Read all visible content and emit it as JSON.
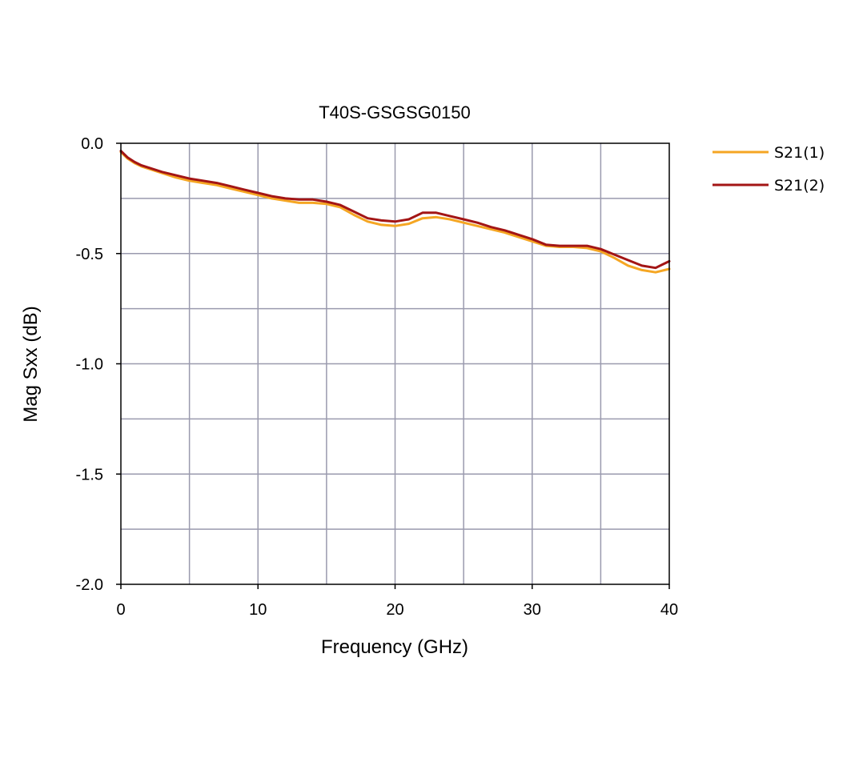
{
  "chart_data": {
    "type": "line",
    "title": "T40S-GSGSG0150",
    "xlabel": "Frequency (GHz)",
    "ylabel": "Mag Sxx (dB)",
    "xlim": [
      0,
      40
    ],
    "ylim": [
      -2.0,
      0.0
    ],
    "xticks": [
      0,
      10,
      20,
      30,
      40
    ],
    "xtick_labels": [
      "0",
      "10",
      "20",
      "30",
      "40"
    ],
    "yticks": [
      0.0,
      -0.5,
      -1.0,
      -1.5,
      -2.0
    ],
    "ytick_labels": [
      "0.0",
      "-0.5",
      "-1.0",
      "-1.5",
      "-2.0"
    ],
    "grid": true,
    "legend_position": "top-right outside",
    "series": [
      {
        "name": "S21(1)",
        "color": "#F5A623",
        "x": [
          0,
          0.5,
          1,
          1.5,
          2,
          3,
          4,
          5,
          6,
          7,
          8,
          9,
          10,
          11,
          12,
          13,
          14,
          15,
          16,
          17,
          18,
          19,
          20,
          21,
          22,
          23,
          24,
          25,
          26,
          27,
          28,
          29,
          30,
          31,
          32,
          33,
          34,
          35,
          36,
          37,
          38,
          39,
          40
        ],
        "y": [
          -0.04,
          -0.07,
          -0.09,
          -0.105,
          -0.115,
          -0.135,
          -0.155,
          -0.17,
          -0.18,
          -0.19,
          -0.205,
          -0.22,
          -0.235,
          -0.25,
          -0.26,
          -0.27,
          -0.27,
          -0.275,
          -0.29,
          -0.325,
          -0.355,
          -0.37,
          -0.375,
          -0.365,
          -0.34,
          -0.335,
          -0.345,
          -0.36,
          -0.375,
          -0.39,
          -0.405,
          -0.425,
          -0.445,
          -0.465,
          -0.47,
          -0.47,
          -0.475,
          -0.49,
          -0.52,
          -0.555,
          -0.575,
          -0.585,
          -0.57
        ]
      },
      {
        "name": "S21(2)",
        "color": "#A31515",
        "x": [
          0,
          0.5,
          1,
          1.5,
          2,
          3,
          4,
          5,
          6,
          7,
          8,
          9,
          10,
          11,
          12,
          13,
          14,
          15,
          16,
          17,
          18,
          19,
          20,
          21,
          22,
          23,
          24,
          25,
          26,
          27,
          28,
          29,
          30,
          31,
          32,
          33,
          34,
          35,
          36,
          37,
          38,
          39,
          39.5,
          40
        ],
        "y": [
          -0.035,
          -0.065,
          -0.085,
          -0.1,
          -0.11,
          -0.13,
          -0.145,
          -0.16,
          -0.17,
          -0.18,
          -0.195,
          -0.21,
          -0.225,
          -0.24,
          -0.25,
          -0.255,
          -0.255,
          -0.265,
          -0.28,
          -0.31,
          -0.34,
          -0.35,
          -0.355,
          -0.345,
          -0.315,
          -0.315,
          -0.33,
          -0.345,
          -0.36,
          -0.38,
          -0.395,
          -0.415,
          -0.435,
          -0.46,
          -0.465,
          -0.465,
          -0.465,
          -0.48,
          -0.505,
          -0.53,
          -0.555,
          -0.565,
          -0.55,
          -0.535
        ]
      }
    ]
  }
}
